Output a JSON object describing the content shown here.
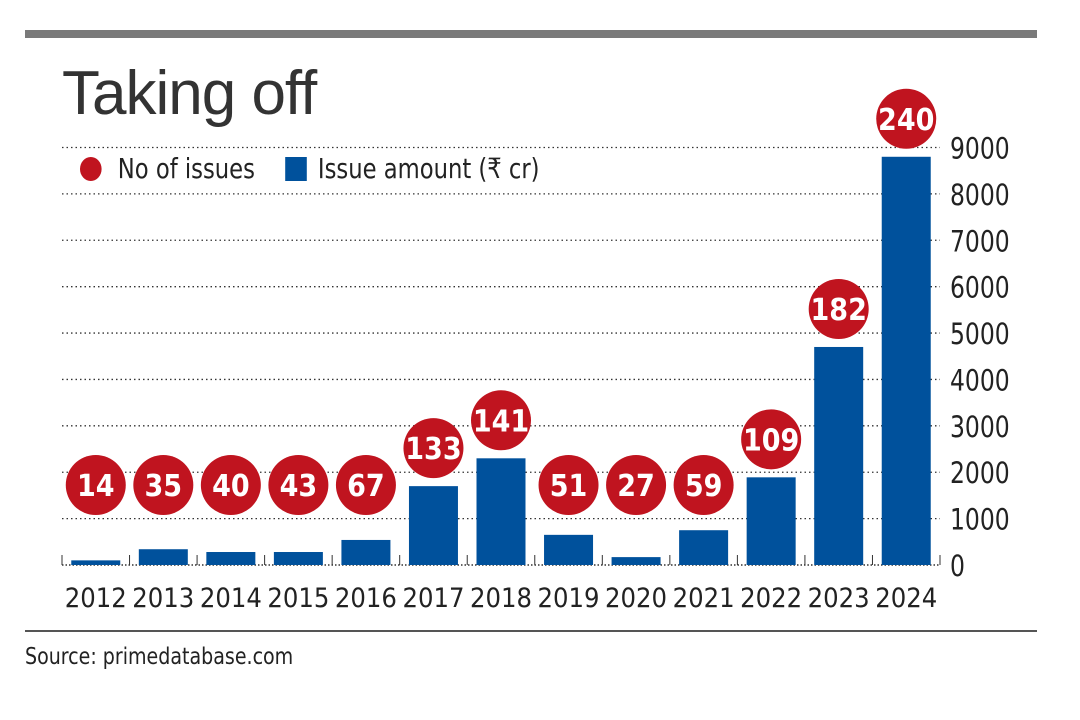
{
  "chart_data": {
    "type": "bar",
    "title": "Taking off",
    "categories": [
      "2012",
      "2013",
      "2014",
      "2015",
      "2016",
      "2017",
      "2018",
      "2019",
      "2020",
      "2021",
      "2022",
      "2023",
      "2024"
    ],
    "series": [
      {
        "name": "Issue amount (₹ cr)",
        "type": "bar",
        "color": "#00519c",
        "values": [
          100,
          340,
          280,
          280,
          540,
          1700,
          2300,
          650,
          170,
          750,
          1890,
          4700,
          8800
        ]
      },
      {
        "name": "No of issues",
        "type": "label-circle",
        "color": "#c0141f",
        "values": [
          14,
          35,
          40,
          43,
          67,
          133,
          141,
          51,
          27,
          59,
          109,
          182,
          240
        ]
      }
    ],
    "yaxis": {
      "position": "right",
      "ylim": [
        0,
        9000
      ],
      "ticks": [
        0,
        1000,
        2000,
        3000,
        4000,
        5000,
        6000,
        7000,
        8000,
        9000
      ]
    },
    "grid": "dotted horizontal",
    "legend": "top-left"
  },
  "source": "Source: primedatabase.com"
}
